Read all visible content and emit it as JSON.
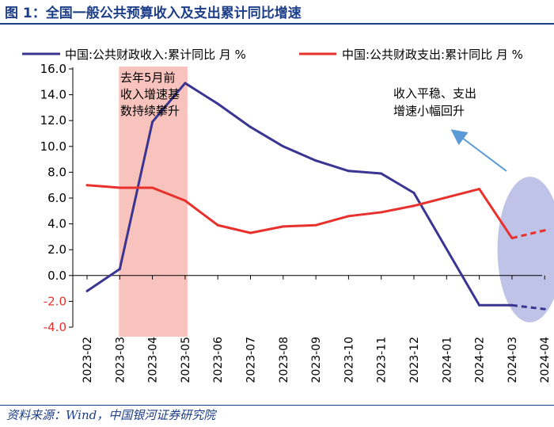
{
  "figure": {
    "title": "图 1：全国一般公共预算收入及支出累计同比增速",
    "source": "资料来源：Wind，中国银河证券研究院"
  },
  "annotations": {
    "shaded_note": [
      "去年5月前",
      "收入增速基",
      "数持续攀升"
    ],
    "ellipse_note": [
      "收入平稳、支出",
      "增速小幅回升"
    ]
  },
  "colors": {
    "revenue": "#3b3592",
    "expenditure": "#e8312d",
    "shade": "#f8b9b2",
    "ellipse": "#b9bde6",
    "arrow": "#5b9bd5",
    "title": "#1d3e88",
    "negative_tick": "#e8312d"
  },
  "chart_data": {
    "type": "line",
    "categories": [
      "2023-02",
      "2023-03",
      "2023-04",
      "2023-05",
      "2023-06",
      "2023-07",
      "2023-08",
      "2023-09",
      "2023-10",
      "2023-11",
      "2023-12",
      "2024-01",
      "2024-02",
      "2024-03",
      "2024-04"
    ],
    "series": [
      {
        "name": "中国:公共财政收入:累计同比 月 %",
        "values": [
          -1.2,
          0.5,
          11.9,
          14.9,
          13.3,
          11.5,
          10.0,
          8.9,
          8.1,
          7.9,
          6.4,
          null,
          -2.3,
          -2.3,
          -2.6
        ],
        "dashed_from": "2024-03"
      },
      {
        "name": "中国:公共财政支出:累计同比 月 %",
        "values": [
          7.0,
          6.8,
          6.8,
          5.8,
          3.9,
          3.3,
          3.8,
          3.9,
          4.6,
          4.9,
          5.4,
          null,
          6.7,
          2.9,
          3.5
        ],
        "dashed_from": "2024-03"
      }
    ],
    "ylim": [
      -4.0,
      16.0
    ],
    "yticks": [
      "-4.0",
      "-2.0",
      "0.0",
      "2.0",
      "4.0",
      "6.0",
      "8.0",
      "10.0",
      "12.0",
      "14.0",
      "16.0"
    ],
    "shaded_range": [
      "2023-03",
      "2023-05"
    ],
    "highlight_ellipse_around": [
      "2024-03",
      "2024-04"
    ],
    "legend_position": "top",
    "grid": false
  }
}
